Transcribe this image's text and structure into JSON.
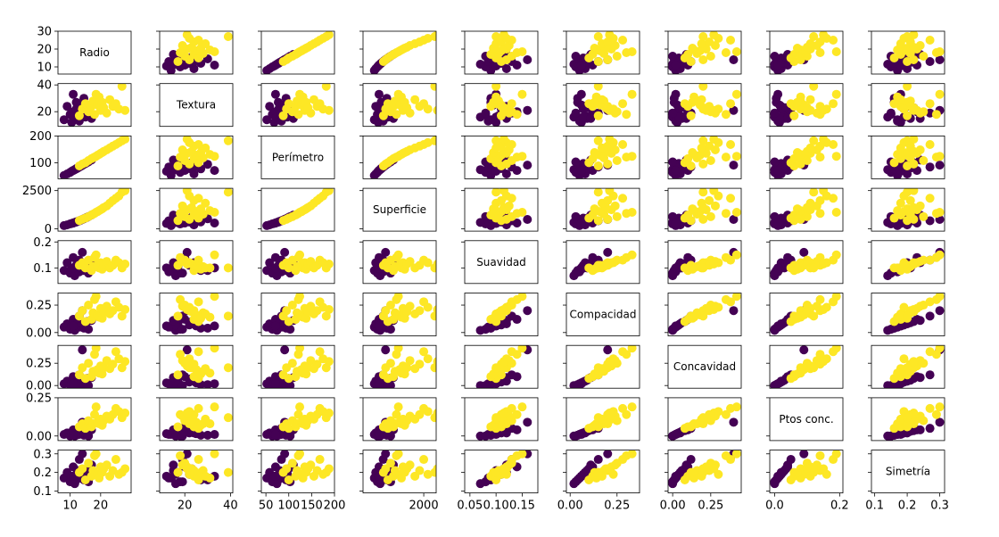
{
  "chart_data": {
    "type": "scatter_matrix",
    "colors": [
      "#440154",
      "#fde725"
    ],
    "classes": [
      0,
      0,
      0,
      0,
      0,
      0,
      0,
      0,
      0,
      0,
      0,
      0,
      0,
      0,
      0,
      0,
      0,
      0,
      0,
      0,
      1,
      1,
      1,
      1,
      1,
      1,
      1,
      1,
      1,
      1,
      1,
      1,
      1,
      1,
      1,
      1,
      1,
      1,
      1,
      1
    ],
    "variables": [
      {
        "name": "Radio",
        "xlim": [
          6,
          30
        ],
        "xticks": [
          10,
          20
        ],
        "ylim": [
          6,
          30
        ],
        "yticks": [
          10,
          20,
          30
        ],
        "values": [
          8,
          9,
          10,
          10.5,
          11,
          11.5,
          12,
          12,
          12.5,
          13,
          13,
          13.5,
          14,
          14,
          14.5,
          15,
          15.5,
          16,
          17,
          11,
          13,
          14,
          15,
          16,
          17,
          17.5,
          18,
          19,
          19.5,
          20,
          20.5,
          21,
          22,
          23,
          24,
          25,
          26,
          27,
          28,
          18.5
        ]
      },
      {
        "name": "Textura",
        "xlim": [
          9,
          41
        ],
        "xticks": [
          20,
          40
        ],
        "ylim": [
          9,
          41
        ],
        "yticks": [
          20,
          40
        ],
        "values": [
          14,
          24,
          18,
          12,
          20,
          16,
          22,
          27,
          15,
          19,
          13,
          25,
          17,
          21,
          30,
          16,
          23,
          19,
          15,
          33,
          17,
          22,
          26,
          20,
          24,
          28,
          18,
          25,
          31,
          21,
          27,
          23,
          19,
          29,
          24,
          26,
          22,
          39,
          21,
          33
        ]
      },
      {
        "name": "Perímetro",
        "xlim": [
          40,
          200
        ],
        "xticks": [
          50,
          100,
          150,
          200
        ],
        "ylim": [
          40,
          200
        ],
        "yticks": [
          100,
          200
        ],
        "values": [
          52,
          58,
          64,
          68,
          71,
          74,
          78,
          77,
          80,
          84,
          84,
          87,
          90,
          91,
          94,
          97,
          100,
          103,
          110,
          71,
          88,
          95,
          100,
          108,
          115,
          118,
          121,
          128,
          131,
          135,
          138,
          142,
          148,
          155,
          162,
          168,
          175,
          182,
          188,
          124
        ]
      },
      {
        "name": "Superficie",
        "xlim": [
          -200,
          2450
        ],
        "xticks": [
          2000
        ],
        "ylim": [
          -150,
          2650
        ],
        "yticks": [
          0,
          2500
        ],
        "values": [
          210,
          260,
          320,
          350,
          380,
          420,
          450,
          455,
          490,
          530,
          530,
          570,
          610,
          615,
          660,
          700,
          750,
          800,
          900,
          380,
          540,
          620,
          700,
          800,
          900,
          960,
          1010,
          1130,
          1190,
          1250,
          1310,
          1390,
          1500,
          1680,
          1850,
          2000,
          2150,
          2400,
          2500,
          1080
        ]
      },
      {
        "name": "Suavidad",
        "xlim": [
          0.04,
          0.18
        ],
        "xticks": [
          {
            "value": 0.05,
            "label": "0.05"
          },
          {
            "value": 0.1,
            "label": "0.10"
          },
          {
            "value": 0.15,
            "label": "0.15"
          }
        ],
        "ylim": [
          0.04,
          0.205
        ],
        "yticks": [
          0.1,
          0.2
        ],
        "values": [
          0.09,
          0.12,
          0.08,
          0.1,
          0.14,
          0.07,
          0.11,
          0.09,
          0.1,
          0.13,
          0.085,
          0.095,
          0.105,
          0.16,
          0.09,
          0.1,
          0.115,
          0.08,
          0.12,
          0.1,
          0.11,
          0.12,
          0.1,
          0.13,
          0.09,
          0.105,
          0.14,
          0.11,
          0.1,
          0.12,
          0.095,
          0.115,
          0.125,
          0.1,
          0.11,
          0.13,
          0.12,
          0.1,
          0.115,
          0.15
        ]
      },
      {
        "name": "Compacidad",
        "xlim": [
          -0.02,
          0.37
        ],
        "xticks": [
          {
            "value": 0,
            "label": "0.00"
          },
          0.25
        ],
        "ylim": [
          -0.03,
          0.36
        ],
        "yticks": [
          {
            "value": 0,
            "label": "0.00"
          },
          0.25
        ],
        "values": [
          0.05,
          0.08,
          0.03,
          0.06,
          0.12,
          0.02,
          0.07,
          0.04,
          0.09,
          0.15,
          0.05,
          0.06,
          0.08,
          0.2,
          0.04,
          0.07,
          0.1,
          0.03,
          0.11,
          0.06,
          0.15,
          0.2,
          0.1,
          0.25,
          0.12,
          0.18,
          0.3,
          0.16,
          0.14,
          0.22,
          0.13,
          0.19,
          0.24,
          0.17,
          0.2,
          0.28,
          0.23,
          0.15,
          0.21,
          0.33
        ]
      },
      {
        "name": "Concavidad",
        "xlim": [
          -0.03,
          0.45
        ],
        "xticks": [
          {
            "value": 0,
            "label": "0.00"
          },
          0.25
        ],
        "ylim": [
          -0.03,
          0.45
        ],
        "yticks": [
          {
            "value": 0,
            "label": "0.00"
          },
          0.25
        ],
        "values": [
          0.02,
          0.05,
          0,
          0.03,
          0.1,
          0,
          0.04,
          0.01,
          0.06,
          0.12,
          0.02,
          0.03,
          0.05,
          0.4,
          0.01,
          0.04,
          0.08,
          0,
          0.09,
          0.02,
          0.12,
          0.2,
          0.08,
          0.25,
          0.1,
          0.16,
          0.35,
          0.18,
          0.14,
          0.22,
          0.13,
          0.2,
          0.28,
          0.19,
          0.24,
          0.38,
          0.3,
          0.2,
          0.27,
          0.42
        ]
      },
      {
        "name": "Ptos conc.",
        "xlim": [
          -0.015,
          0.21
        ],
        "xticks": [
          {
            "value": 0,
            "label": "0.0"
          },
          0.2
        ],
        "ylim": [
          -0.03,
          0.25
        ],
        "yticks": [
          {
            "value": 0,
            "label": "0.00"
          },
          0.25
        ],
        "values": [
          0.01,
          0.02,
          0,
          0.015,
          0.04,
          0,
          0.02,
          0.005,
          0.03,
          0.05,
          0.01,
          0.015,
          0.025,
          0.09,
          0.005,
          0.02,
          0.035,
          0,
          0.04,
          0.01,
          0.06,
          0.08,
          0.05,
          0.1,
          0.06,
          0.08,
          0.14,
          0.09,
          0.08,
          0.11,
          0.07,
          0.1,
          0.13,
          0.11,
          0.14,
          0.18,
          0.16,
          0.12,
          0.15,
          0.19
        ]
      },
      {
        "name": "Simetría",
        "xlim": [
          0.09,
          0.315
        ],
        "xticks": [
          0.1,
          0.2,
          0.3
        ],
        "ylim": [
          0.09,
          0.32
        ],
        "yticks": [
          0.1,
          0.2,
          0.3
        ],
        "values": [
          0.17,
          0.2,
          0.15,
          0.18,
          0.23,
          0.14,
          0.19,
          0.16,
          0.21,
          0.27,
          0.17,
          0.18,
          0.2,
          0.3,
          0.16,
          0.19,
          0.22,
          0.15,
          0.24,
          0.18,
          0.2,
          0.22,
          0.16,
          0.25,
          0.18,
          0.21,
          0.29,
          0.19,
          0.17,
          0.23,
          0.2,
          0.22,
          0.24,
          0.18,
          0.21,
          0.27,
          0.19,
          0.2,
          0.22,
          0.3
        ]
      }
    ]
  }
}
